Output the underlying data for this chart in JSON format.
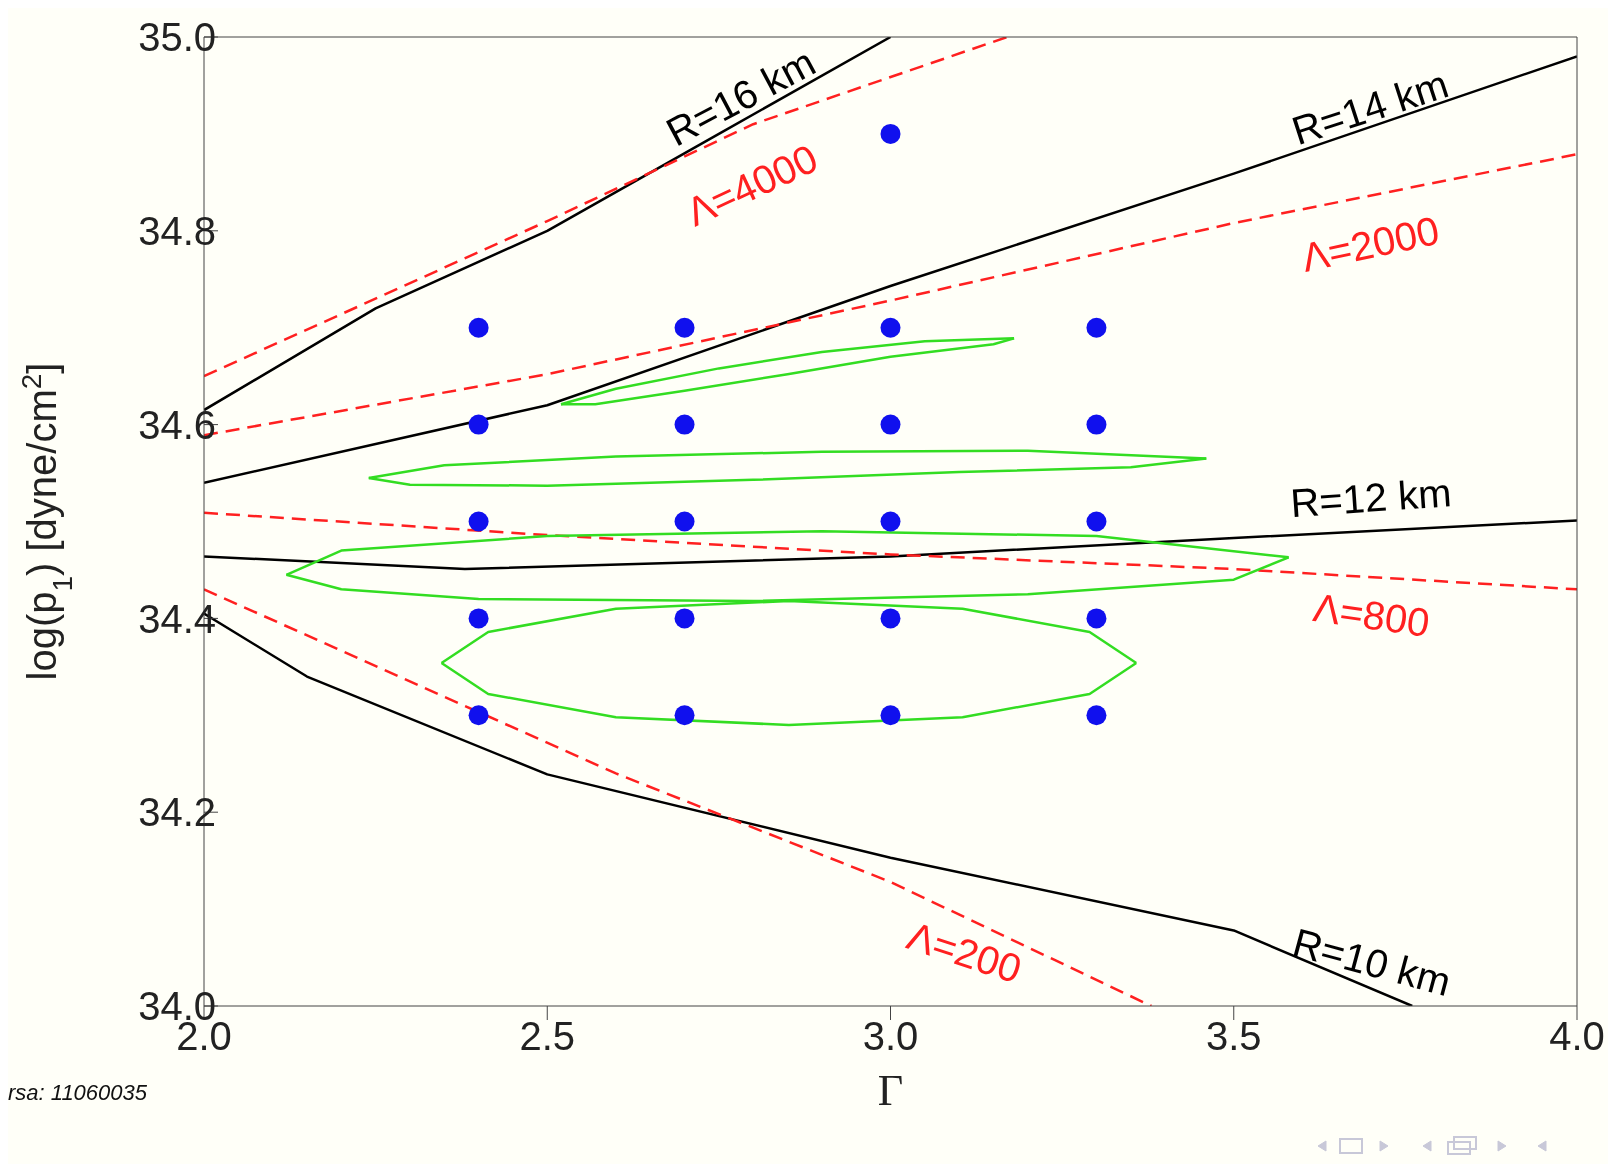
{
  "chart_data": {
    "type": "line",
    "xlabel": "Γ",
    "ylabel": "log(p$_{1}$) [dyne/cm$^{2}$]",
    "xlim": [
      2,
      4
    ],
    "xticks": [
      {
        "value": 2,
        "label": "2.0"
      },
      {
        "value": 2.5,
        "label": "2.5"
      },
      {
        "value": 3,
        "label": "3.0"
      },
      {
        "value": 3.5,
        "label": "3.5"
      },
      {
        "value": 4,
        "label": "4.0"
      }
    ],
    "ylim": [
      34,
      35
    ],
    "yticks": [
      {
        "value": 34,
        "label": "34.0"
      },
      {
        "value": 34.2,
        "label": "34.2"
      },
      {
        "value": 34.4,
        "label": "34.4"
      },
      {
        "value": 34.6,
        "label": "34.6"
      },
      {
        "value": 34.8,
        "label": "34.8"
      },
      {
        "value": 35,
        "label": "35.0"
      }
    ],
    "grid": false,
    "legend": false,
    "marker": "none",
    "annotations": [
      "rsa: 11060035"
    ],
    "series": [
      {
        "name": "R=16 km",
        "color": "#000000",
        "line_style": "solid",
        "x": [
          2.0,
          2.25,
          2.5,
          2.75,
          3.0
        ],
        "values": [
          34.615,
          34.72,
          34.8,
          34.9,
          35.0
        ]
      },
      {
        "name": "Λ=4000",
        "color": "#ff2020",
        "line_style": "dashed",
        "x": [
          2.0,
          2.5,
          2.8,
          3.17
        ],
        "values": [
          34.65,
          34.81,
          34.91,
          35.0
        ]
      },
      {
        "name": "R=14 km",
        "color": "#000000",
        "line_style": "solid",
        "x": [
          2.0,
          2.5,
          3.0,
          3.5,
          4.0
        ],
        "values": [
          34.54,
          34.62,
          34.743,
          34.859,
          34.98
        ]
      },
      {
        "name": "Λ=2000",
        "color": "#ff2020",
        "line_style": "dashed",
        "x": [
          2.0,
          2.5,
          3.0,
          3.5,
          4.0
        ],
        "values": [
          34.589,
          34.652,
          34.728,
          34.808,
          34.879
        ]
      },
      {
        "name": "R=12 km",
        "color": "#000000",
        "line_style": "solid",
        "x": [
          2.0,
          2.38,
          3.0,
          3.5,
          4.0
        ],
        "values": [
          34.464,
          34.451,
          34.464,
          34.483,
          34.501
        ]
      },
      {
        "name": "Λ=800",
        "color": "#ff2020",
        "line_style": "dashed",
        "x": [
          2.0,
          2.5,
          3.0,
          3.5,
          4.0
        ],
        "values": [
          34.509,
          34.486,
          34.466,
          34.451,
          34.43
        ]
      },
      {
        "name": "R=10 km",
        "color": "#000000",
        "line_style": "solid",
        "x": [
          2.0,
          2.15,
          2.5,
          3.0,
          3.5,
          3.76
        ],
        "values": [
          34.405,
          34.34,
          34.239,
          34.153,
          34.078,
          34.0
        ]
      },
      {
        "name": "Λ=200",
        "color": "#ff2020",
        "line_style": "dashed",
        "x": [
          2.0,
          2.6,
          3.0,
          3.38
        ],
        "values": [
          34.43,
          34.24,
          34.128,
          34.0
        ]
      },
      {
        "color": "#33dd22",
        "line_style": "solid",
        "x": [
          2.52,
          2.6,
          2.75,
          2.9,
          3.05,
          3.18
        ],
        "values": [
          34.621,
          34.637,
          34.658,
          34.675,
          34.686,
          34.689
        ]
      },
      {
        "color": "#33dd22",
        "line_style": "solid",
        "x": [
          2.52,
          2.57,
          2.7,
          2.85,
          3.0,
          3.15,
          3.18
        ],
        "values": [
          34.621,
          34.621,
          34.635,
          34.652,
          34.67,
          34.683,
          34.689
        ]
      },
      {
        "color": "#33dd22",
        "line_style": "solid",
        "x": [
          2.24,
          2.35,
          2.6,
          2.9,
          3.2,
          3.46
        ],
        "values": [
          34.545,
          34.558,
          34.567,
          34.572,
          34.573,
          34.565
        ]
      },
      {
        "color": "#33dd22",
        "line_style": "solid",
        "x": [
          2.24,
          2.3,
          2.5,
          2.8,
          3.1,
          3.35,
          3.46
        ],
        "values": [
          34.545,
          34.538,
          34.537,
          34.543,
          34.551,
          34.556,
          34.565
        ]
      },
      {
        "color": "#33dd22",
        "line_style": "solid",
        "x": [
          2.12,
          2.2,
          2.5,
          2.9,
          3.3,
          3.58
        ],
        "values": [
          34.445,
          34.47,
          34.485,
          34.49,
          34.485,
          34.463
        ]
      },
      {
        "color": "#33dd22",
        "line_style": "solid",
        "x": [
          2.12,
          2.2,
          2.4,
          2.8,
          3.2,
          3.5,
          3.58
        ],
        "values": [
          34.445,
          34.43,
          34.42,
          34.418,
          34.425,
          34.44,
          34.463
        ]
      },
      {
        "color": "#33dd22",
        "line_style": "solid",
        "x": [
          2.346,
          2.414,
          2.6,
          2.852,
          3.105,
          3.29,
          3.358
        ],
        "values": [
          34.354,
          34.386,
          34.41,
          34.418,
          34.41,
          34.386,
          34.354
        ]
      },
      {
        "color": "#33dd22",
        "line_style": "solid",
        "x": [
          2.346,
          2.414,
          2.6,
          2.852,
          3.105,
          3.29,
          3.358
        ],
        "values": [
          34.354,
          34.322,
          34.298,
          34.29,
          34.298,
          34.322,
          34.354
        ]
      },
      {
        "type": "scatter",
        "color": "#1010ee",
        "marker": "circle",
        "x": [
          2.4,
          2.7,
          3.0,
          3.3,
          2.4,
          2.7,
          3.0,
          3.3,
          2.4,
          2.7,
          3.0,
          3.3,
          2.4,
          2.7,
          3.0,
          3.3,
          2.4,
          2.7,
          3.0,
          3.3,
          3.0
        ],
        "values": [
          34.7,
          34.7,
          34.7,
          34.7,
          34.6,
          34.6,
          34.6,
          34.6,
          34.5,
          34.5,
          34.5,
          34.5,
          34.4,
          34.4,
          34.4,
          34.4,
          34.3,
          34.3,
          34.3,
          34.3,
          34.9
        ]
      }
    ]
  }
}
